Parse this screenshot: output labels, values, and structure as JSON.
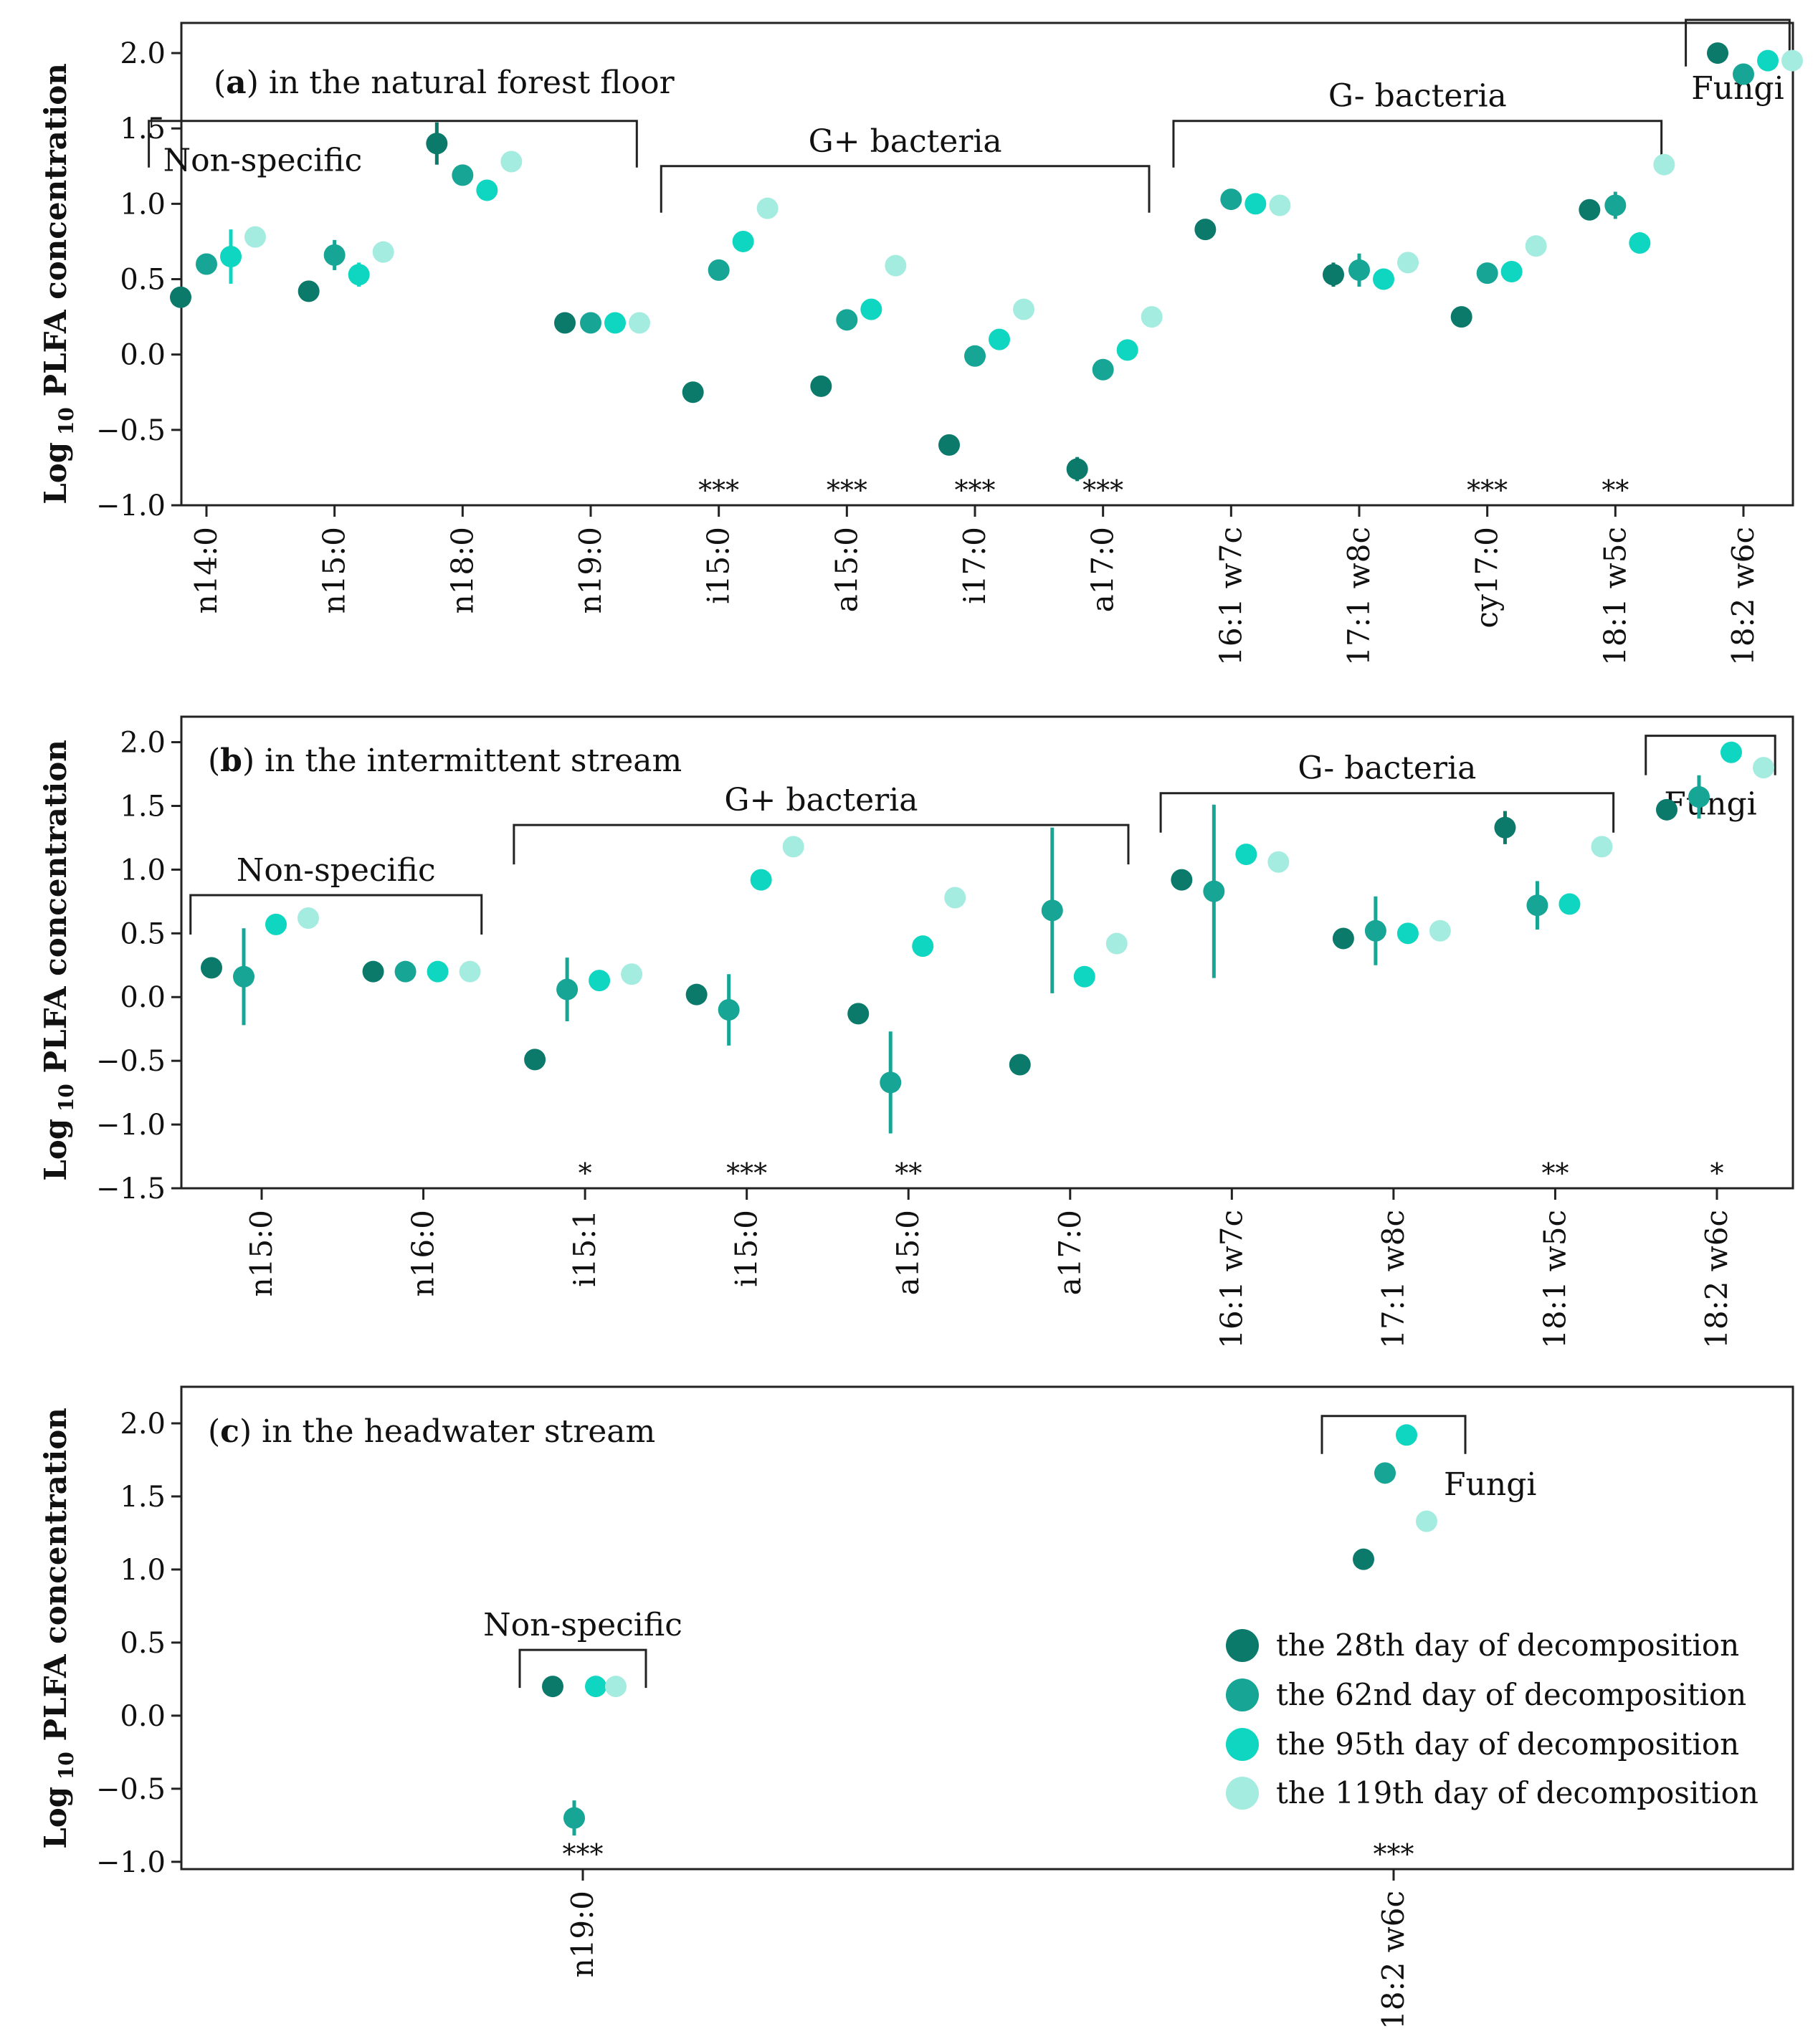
{
  "chart_data": {
    "type": "scatter",
    "ylabel": "Log₁₀ PLFA concentration",
    "series_names": [
      "the 28th day of decomposition",
      "the 62nd day of decomposition",
      "the 95th day of decomposition",
      "the 119th day of decomposition"
    ],
    "colors": [
      "#0b7a6b",
      "#17a596",
      "#0fd6c1",
      "#a5ece0"
    ],
    "panels": [
      {
        "id": "a",
        "letter": "a",
        "title": "in the natural forest floor",
        "ylim": [
          -1.0,
          2.2
        ],
        "yticks": [
          -1.0,
          -0.5,
          0.0,
          0.5,
          1.0,
          1.5,
          2.0
        ],
        "ytick_labels": [
          "−1.0",
          "−0.5",
          "0.0",
          "0.5",
          "1.0",
          "1.5",
          "2.0"
        ],
        "categories": [
          "n14:0",
          "n15:0",
          "n18:0",
          "n19:0",
          "i15:0",
          "a15:0",
          "i17:0",
          "a17:0",
          "16:1 w7c",
          "17:1 w8c",
          "cy17:0",
          "18:1 w5c",
          "18:2 w6c"
        ],
        "values": [
          [
            0.38,
            0.6,
            0.65,
            0.78
          ],
          [
            0.42,
            0.66,
            0.53,
            0.68
          ],
          [
            1.4,
            1.19,
            1.09,
            1.28
          ],
          [
            0.21,
            0.21,
            0.21,
            0.21
          ],
          [
            -0.25,
            0.56,
            0.75,
            0.97
          ],
          [
            -0.21,
            0.23,
            0.3,
            0.59
          ],
          [
            -0.6,
            -0.01,
            0.1,
            0.3
          ],
          [
            -0.76,
            -0.1,
            0.03,
            0.25
          ],
          [
            0.83,
            1.03,
            1.0,
            0.99
          ],
          [
            0.53,
            0.56,
            0.5,
            0.61
          ],
          [
            0.25,
            0.54,
            0.55,
            0.72
          ],
          [
            0.96,
            0.99,
            0.74,
            1.26
          ],
          [
            2.0,
            1.86,
            1.95,
            1.95
          ]
        ],
        "errors": [
          [
            0.0,
            0.0,
            0.18,
            0.0
          ],
          [
            0.0,
            0.1,
            0.08,
            0.0
          ],
          [
            0.14,
            0.0,
            0.0,
            0.0
          ],
          [
            0.0,
            0.0,
            0.0,
            0.0
          ],
          [
            0.0,
            0.0,
            0.0,
            0.0
          ],
          [
            0.0,
            0.0,
            0.0,
            0.0
          ],
          [
            0.0,
            0.0,
            0.0,
            0.0
          ],
          [
            0.08,
            0.0,
            0.0,
            0.0
          ],
          [
            0.0,
            0.0,
            0.0,
            0.0
          ],
          [
            0.08,
            0.11,
            0.0,
            0.0
          ],
          [
            0.0,
            0.0,
            0.0,
            0.0
          ],
          [
            0.06,
            0.09,
            0.0,
            0.0
          ],
          [
            0.0,
            0.0,
            0.07,
            0.0
          ]
        ],
        "significance": [
          "",
          "",
          "",
          "",
          "***",
          "***",
          "***",
          "***",
          "",
          "",
          "***",
          "**",
          ""
        ],
        "groups": [
          {
            "label": "Non-specific",
            "from": 0,
            "to": 3,
            "bracket_y": 1.55
          },
          {
            "label": "G+ bacteria",
            "from": 4,
            "to": 7,
            "bracket_y": 1.25
          },
          {
            "label": "G- bacteria",
            "from": 8,
            "to": 11,
            "bracket_y": 1.55
          },
          {
            "label": "Fungi",
            "from": 12,
            "to": 12,
            "bracket_y": 2.22
          }
        ]
      },
      {
        "id": "b",
        "letter": "b",
        "title": "in the intermittent stream",
        "ylim": [
          -1.5,
          2.2
        ],
        "yticks": [
          -1.5,
          -1.0,
          -0.5,
          0.0,
          0.5,
          1.0,
          1.5,
          2.0
        ],
        "ytick_labels": [
          "−1.5",
          "−1.0",
          "−0.5",
          "0.0",
          "0.5",
          "1.0",
          "1.5",
          "2.0"
        ],
        "categories": [
          "n15:0",
          "n16:0",
          "i15:1",
          "i15:0",
          "a15:0",
          "a17:0",
          "16:1 w7c",
          "17:1 w8c",
          "18:1 w5c",
          "18:2 w6c"
        ],
        "values": [
          [
            0.23,
            0.16,
            0.57,
            0.62
          ],
          [
            0.2,
            0.2,
            0.2,
            0.2
          ],
          [
            -0.49,
            0.06,
            0.13,
            0.18
          ],
          [
            0.02,
            -0.1,
            0.92,
            1.18
          ],
          [
            -0.13,
            -0.67,
            0.4,
            0.78
          ],
          [
            -0.53,
            0.68,
            0.16,
            0.42
          ],
          [
            0.92,
            0.83,
            1.12,
            1.06
          ],
          [
            0.46,
            0.52,
            0.5,
            0.52
          ],
          [
            1.33,
            0.72,
            0.73,
            1.18
          ],
          [
            1.47,
            1.57,
            1.92,
            1.8
          ]
        ],
        "errors": [
          [
            0.0,
            0.38,
            0.0,
            0.0
          ],
          [
            0.0,
            0.0,
            0.0,
            0.0
          ],
          [
            0.0,
            0.25,
            0.0,
            0.0
          ],
          [
            0.0,
            0.28,
            0.0,
            0.0
          ],
          [
            0.0,
            0.4,
            0.0,
            0.0
          ],
          [
            0.0,
            0.65,
            0.0,
            0.0
          ],
          [
            0.0,
            0.68,
            0.0,
            0.0
          ],
          [
            0.0,
            0.27,
            0.0,
            0.0
          ],
          [
            0.13,
            0.19,
            0.0,
            0.0
          ],
          [
            0.0,
            0.17,
            0.0,
            0.0
          ]
        ],
        "significance": [
          "",
          "",
          "*",
          "***",
          "**",
          "",
          "",
          "",
          "**",
          "*"
        ],
        "groups": [
          {
            "label": "Non-specific",
            "from": 0,
            "to": 1,
            "bracket_y": 0.8
          },
          {
            "label": "G+ bacteria",
            "from": 2,
            "to": 5,
            "bracket_y": 1.35
          },
          {
            "label": "G- bacteria",
            "from": 6,
            "to": 8,
            "bracket_y": 1.6
          },
          {
            "label": "Fungi",
            "from": 9,
            "to": 9,
            "bracket_y": 2.05
          }
        ]
      },
      {
        "id": "c",
        "letter": "c",
        "title": "in the headwater stream",
        "ylim": [
          -1.05,
          2.25
        ],
        "yticks": [
          -1.0,
          -0.5,
          0.0,
          0.5,
          1.0,
          1.5,
          2.0
        ],
        "ytick_labels": [
          "−1.0",
          "−0.5",
          "0.0",
          "0.5",
          "1.0",
          "1.5",
          "2.0"
        ],
        "categories": [
          "n19:0",
          "18:2 w6c"
        ],
        "values": [
          [
            0.2,
            -0.7,
            0.2,
            0.2
          ],
          [
            1.07,
            1.66,
            1.92,
            1.33
          ]
        ],
        "errors": [
          [
            0.0,
            0.12,
            0.0,
            0.0
          ],
          [
            0.06,
            0.0,
            0.0,
            0.0
          ]
        ],
        "significance": [
          "***",
          "***"
        ],
        "groups": [
          {
            "label": "Non-specific",
            "from": 0,
            "to": 0,
            "bracket_y": 0.45
          },
          {
            "label": "Fungi",
            "from": 1,
            "to": 1,
            "bracket_y": 2.05
          }
        ]
      }
    ]
  }
}
